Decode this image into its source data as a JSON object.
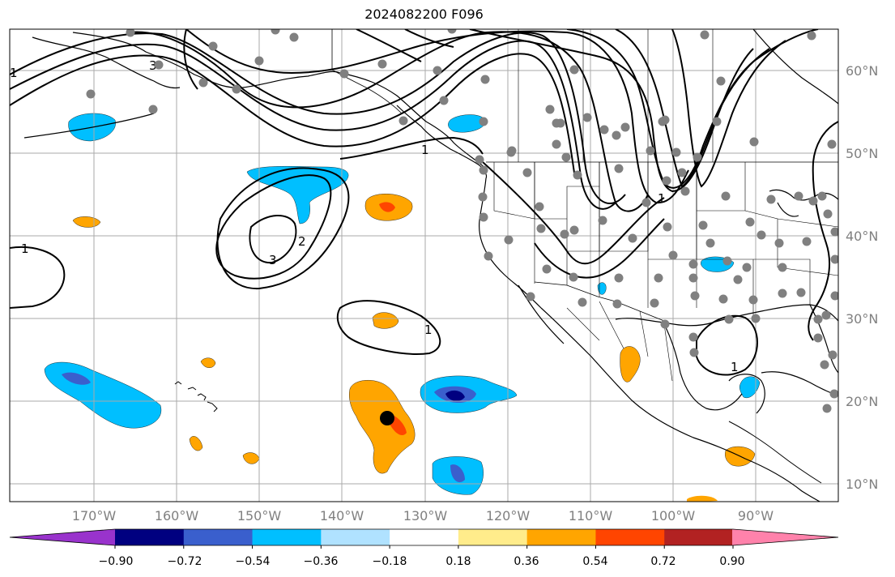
{
  "title": "2024082200 F096",
  "lon_ticks": [
    "170°W",
    "160°W",
    "150°W",
    "140°W",
    "130°W",
    "120°W",
    "110°W",
    "100°W",
    "90°W"
  ],
  "lat_ticks": [
    "60°N",
    "50°N",
    "40°N",
    "30°N",
    "20°N",
    "10°N"
  ],
  "colorbar": {
    "colors": [
      "#9933cc",
      "#000080",
      "#3a5fcd",
      "#00bfff",
      "#b0e2ff",
      "#ffffff",
      "#ffec8b",
      "#ffa500",
      "#ff4500",
      "#b22222",
      "#ff82ab"
    ],
    "tick_labels": [
      "−0.90",
      "−0.72",
      "−0.54",
      "−0.36",
      "−0.18",
      "0.18",
      "0.36",
      "0.54",
      "0.72",
      "0.90"
    ]
  },
  "contour_labels": [
    "3",
    "1",
    "3",
    "2",
    "1",
    "1",
    "1",
    "1",
    "1"
  ],
  "colors": {
    "land_outline": "#000000",
    "grid": "#aaaaaa",
    "station": "#808080",
    "marker": "#000000"
  }
}
